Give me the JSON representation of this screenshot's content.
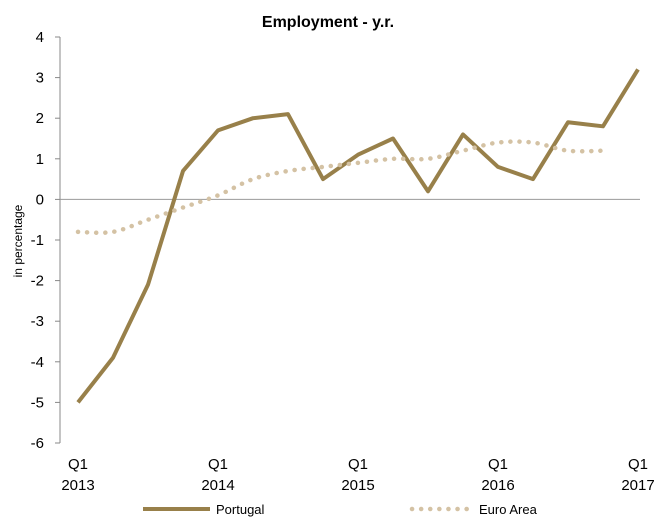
{
  "chart_data": {
    "type": "line",
    "title": "Employment - y.r.",
    "ylabel": "in percentage",
    "xlabel": "",
    "ylim": [
      -6,
      4
    ],
    "yticks": [
      4,
      3,
      2,
      1,
      0,
      -1,
      -2,
      -3,
      -4,
      -5,
      -6
    ],
    "x": [
      "2013Q1",
      "2013Q2",
      "2013Q3",
      "2013Q4",
      "2014Q1",
      "2014Q2",
      "2014Q3",
      "2014Q4",
      "2015Q1",
      "2015Q2",
      "2015Q3",
      "2015Q4",
      "2016Q1",
      "2016Q2",
      "2016Q3",
      "2016Q4",
      "2017Q1"
    ],
    "x_tick_labels": [
      {
        "q": "Q1",
        "year": "2013",
        "at": "2013Q1"
      },
      {
        "q": "Q1",
        "year": "2014",
        "at": "2014Q1"
      },
      {
        "q": "Q1",
        "year": "2015",
        "at": "2015Q1"
      },
      {
        "q": "Q1",
        "year": "2016",
        "at": "2016Q1"
      },
      {
        "q": "Q1",
        "year": "2017",
        "at": "2017Q1"
      }
    ],
    "series": [
      {
        "name": "Portugal",
        "style": "solid",
        "color": "#98804A",
        "values": [
          -5.0,
          -3.9,
          -2.1,
          0.7,
          1.7,
          2.0,
          2.1,
          0.5,
          1.1,
          1.5,
          0.2,
          1.6,
          0.8,
          0.5,
          1.9,
          1.8,
          3.2
        ]
      },
      {
        "name": "Euro Area",
        "style": "dotted",
        "color": "#D4C2A4",
        "values": [
          -0.8,
          -0.8,
          -0.5,
          -0.2,
          0.1,
          0.5,
          0.7,
          0.8,
          0.9,
          1.0,
          1.0,
          1.2,
          1.4,
          1.4,
          1.2,
          1.2,
          null
        ]
      }
    ],
    "grid": false,
    "legend_position": "bottom"
  }
}
